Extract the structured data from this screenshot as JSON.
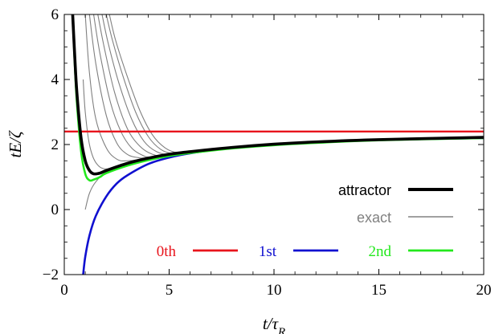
{
  "chart_data": {
    "type": "line",
    "title": "",
    "xlabel": "t/τ_R",
    "ylabel": "tE/ζ",
    "xlim": [
      0,
      20
    ],
    "ylim": [
      -2,
      6
    ],
    "x_ticks": [
      0,
      5,
      10,
      15,
      20
    ],
    "y_ticks": [
      -2,
      0,
      2,
      4,
      6
    ],
    "x_tick_labels": [
      "0",
      "5",
      "10",
      "15",
      "20"
    ],
    "y_tick_labels": [
      "−2",
      "0",
      "2",
      "4",
      "6"
    ],
    "grid": false,
    "legend_position": "bottom-right",
    "series": [
      {
        "name": "0th",
        "color": "#e8141c",
        "points": [
          [
            0,
            2.4
          ],
          [
            20,
            2.4
          ]
        ]
      },
      {
        "name": "1st",
        "color": "#1010d0",
        "points": [
          [
            0.9,
            -2.0
          ],
          [
            1.0,
            -1.45
          ],
          [
            1.2,
            -0.8
          ],
          [
            1.5,
            -0.2
          ],
          [
            2.0,
            0.4
          ],
          [
            2.5,
            0.8
          ],
          [
            3,
            1.05
          ],
          [
            4,
            1.4
          ],
          [
            5,
            1.6
          ],
          [
            6,
            1.73
          ],
          [
            8,
            1.9
          ],
          [
            10,
            2.0
          ],
          [
            12,
            2.07
          ],
          [
            15,
            2.14
          ],
          [
            20,
            2.2
          ]
        ]
      },
      {
        "name": "2nd",
        "color": "#22e81c",
        "points": [
          [
            0.4,
            6.0
          ],
          [
            0.5,
            4.5
          ],
          [
            0.6,
            3.3
          ],
          [
            0.8,
            1.8
          ],
          [
            1.0,
            1.1
          ],
          [
            1.2,
            0.9
          ],
          [
            1.4,
            0.92
          ],
          [
            1.7,
            1.0
          ],
          [
            2.0,
            1.12
          ],
          [
            3,
            1.35
          ],
          [
            4,
            1.52
          ],
          [
            5,
            1.65
          ],
          [
            6,
            1.74
          ],
          [
            8,
            1.88
          ],
          [
            10,
            1.98
          ],
          [
            12,
            2.05
          ],
          [
            15,
            2.13
          ],
          [
            20,
            2.2
          ]
        ]
      },
      {
        "name": "attractor",
        "color": "#000000",
        "points": [
          [
            0.4,
            6.0
          ],
          [
            0.5,
            4.7
          ],
          [
            0.6,
            3.6
          ],
          [
            0.8,
            2.2
          ],
          [
            1.0,
            1.5
          ],
          [
            1.2,
            1.2
          ],
          [
            1.4,
            1.1
          ],
          [
            1.7,
            1.12
          ],
          [
            2.0,
            1.2
          ],
          [
            3,
            1.42
          ],
          [
            4,
            1.58
          ],
          [
            5,
            1.7
          ],
          [
            6,
            1.78
          ],
          [
            8,
            1.91
          ],
          [
            10,
            2.01
          ],
          [
            12,
            2.08
          ],
          [
            15,
            2.15
          ],
          [
            20,
            2.22
          ]
        ]
      }
    ],
    "exact_family": {
      "name": "exact",
      "color": "#808080",
      "curves": [
        {
          "points": [
            [
              1.0,
              0.0
            ],
            [
              1.2,
              0.5
            ],
            [
              1.5,
              0.85
            ],
            [
              2.0,
              1.15
            ],
            [
              3,
              1.42
            ],
            [
              4,
              1.58
            ],
            [
              5,
              1.7
            ],
            [
              8,
              1.91
            ],
            [
              12,
              2.08
            ],
            [
              20,
              2.22
            ]
          ]
        },
        {
          "points": [
            [
              0.9,
              4.0
            ],
            [
              1.0,
              3.0
            ],
            [
              1.2,
              2.0
            ],
            [
              1.5,
              1.45
            ],
            [
              2.0,
              1.25
            ],
            [
              3,
              1.42
            ],
            [
              5,
              1.7
            ],
            [
              10,
              2.01
            ],
            [
              20,
              2.22
            ]
          ]
        },
        {
          "points": [
            [
              1.0,
              6.0
            ],
            [
              1.2,
              4.2
            ],
            [
              1.5,
              2.8
            ],
            [
              2.0,
              1.9
            ],
            [
              2.5,
              1.55
            ],
            [
              3,
              1.5
            ],
            [
              4,
              1.58
            ],
            [
              6,
              1.78
            ],
            [
              10,
              2.01
            ],
            [
              20,
              2.22
            ]
          ]
        },
        {
          "points": [
            [
              1.2,
              6.0
            ],
            [
              1.5,
              4.5
            ],
            [
              2.0,
              2.9
            ],
            [
              2.5,
              2.05
            ],
            [
              3.0,
              1.7
            ],
            [
              3.5,
              1.6
            ],
            [
              4,
              1.6
            ],
            [
              6,
              1.78
            ],
            [
              10,
              2.01
            ],
            [
              20,
              2.22
            ]
          ]
        },
        {
          "points": [
            [
              1.4,
              6.0
            ],
            [
              1.7,
              4.8
            ],
            [
              2.2,
              3.3
            ],
            [
              2.7,
              2.4
            ],
            [
              3.2,
              1.9
            ],
            [
              3.7,
              1.68
            ],
            [
              4.2,
              1.62
            ],
            [
              6,
              1.78
            ],
            [
              10,
              2.01
            ],
            [
              20,
              2.22
            ]
          ]
        },
        {
          "points": [
            [
              1.6,
              6.0
            ],
            [
              1.9,
              5.0
            ],
            [
              2.4,
              3.6
            ],
            [
              3.0,
              2.5
            ],
            [
              3.6,
              1.95
            ],
            [
              4.2,
              1.7
            ],
            [
              4.8,
              1.66
            ],
            [
              6,
              1.78
            ],
            [
              10,
              2.01
            ],
            [
              20,
              2.22
            ]
          ]
        },
        {
          "points": [
            [
              1.8,
              6.0
            ],
            [
              2.1,
              5.1
            ],
            [
              2.6,
              3.9
            ],
            [
              3.2,
              2.8
            ],
            [
              3.8,
              2.1
            ],
            [
              4.4,
              1.78
            ],
            [
              5.0,
              1.7
            ],
            [
              6,
              1.78
            ],
            [
              10,
              2.01
            ],
            [
              20,
              2.22
            ]
          ]
        },
        {
          "points": [
            [
              2.0,
              6.0
            ],
            [
              2.3,
              5.2
            ],
            [
              2.8,
              4.1
            ],
            [
              3.4,
              3.0
            ],
            [
              4.0,
              2.25
            ],
            [
              4.6,
              1.85
            ],
            [
              5.2,
              1.72
            ],
            [
              6,
              1.78
            ],
            [
              10,
              2.01
            ],
            [
              20,
              2.22
            ]
          ]
        },
        {
          "points": [
            [
              2.15,
              6.0
            ],
            [
              2.45,
              5.2
            ],
            [
              3.0,
              4.1
            ],
            [
              3.6,
              3.05
            ],
            [
              4.2,
              2.3
            ],
            [
              4.8,
              1.9
            ],
            [
              5.4,
              1.75
            ],
            [
              6.2,
              1.8
            ],
            [
              10,
              2.01
            ],
            [
              20,
              2.22
            ]
          ]
        }
      ]
    },
    "legend": {
      "row1": [
        {
          "label": "attractor",
          "color": "#000000"
        }
      ],
      "row2": [
        {
          "label": "exact",
          "color": "#808080"
        }
      ],
      "row3": [
        {
          "label": "0th",
          "color": "#e8141c"
        },
        {
          "label": "1st",
          "color": "#1010d0"
        },
        {
          "label": "2nd",
          "color": "#22e81c"
        }
      ]
    }
  }
}
